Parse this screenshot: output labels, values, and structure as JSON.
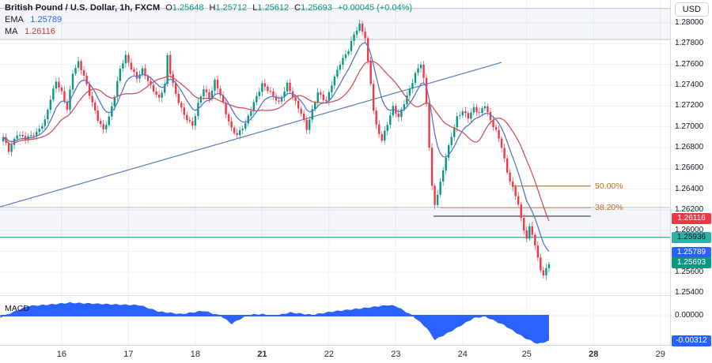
{
  "header": {
    "symbol_line": "British Pound / U.S. Dollar, 1h, FXCM",
    "ohlc": [
      {
        "label": "O",
        "value": "1.25648"
      },
      {
        "label": "H",
        "value": "1.25712"
      },
      {
        "label": "L",
        "value": "1.25612"
      },
      {
        "label": "C",
        "value": "1.25693"
      }
    ],
    "change": "+0.00045 (+0.04%)",
    "ema_label": "EMA",
    "ema_value": "1.25789",
    "ma_label": "MA",
    "ma_value": "1.26116"
  },
  "macd_label": "MACD",
  "axis": {
    "currency_button": "USD",
    "price_ticks": [
      {
        "text": "1.28000",
        "price": 1.28
      },
      {
        "text": "1.27800",
        "price": 1.278
      },
      {
        "text": "1.27600",
        "price": 1.276
      },
      {
        "text": "1.27400",
        "price": 1.274
      },
      {
        "text": "1.27200",
        "price": 1.272
      },
      {
        "text": "1.27000",
        "price": 1.27
      },
      {
        "text": "1.26800",
        "price": 1.268
      },
      {
        "text": "1.26600",
        "price": 1.266
      },
      {
        "text": "1.26400",
        "price": 1.264
      },
      {
        "text": "1.26200",
        "price": 1.262
      },
      {
        "text": "1.26000",
        "price": 1.26
      },
      {
        "text": "1.25600",
        "price": 1.256
      },
      {
        "text": "1.25400",
        "price": 1.254
      }
    ],
    "macd_tick": {
      "text": "0.00000",
      "value": 0
    },
    "time_labels": [
      {
        "text": "16",
        "bar": 21,
        "bold": false
      },
      {
        "text": "17",
        "bar": 45,
        "bold": false
      },
      {
        "text": "18",
        "bar": 69,
        "bold": false
      },
      {
        "text": "21",
        "bar": 93,
        "bold": true
      },
      {
        "text": "22",
        "bar": 117,
        "bold": false
      },
      {
        "text": "23",
        "bar": 141,
        "bold": false
      },
      {
        "text": "24",
        "bar": 165,
        "bold": false
      },
      {
        "text": "25",
        "bar": 188,
        "bold": false
      },
      {
        "text": "28",
        "bar": 212,
        "bold": true
      },
      {
        "text": "29",
        "bar": 236,
        "bold": false
      }
    ]
  },
  "badges": [
    {
      "name": "ma-value-badge",
      "text": "1.26116",
      "pane": "price",
      "price": 1.26116,
      "bg": "#f23645",
      "fg": "#ffffff"
    },
    {
      "name": "level-price-badge",
      "text": "1.25936",
      "pane": "price",
      "price": 1.25936,
      "bg": "#2bb3a8",
      "fg": "#101722"
    },
    {
      "name": "ema-value-badge",
      "text": "1.25789",
      "pane": "price",
      "price": 1.25789,
      "bg": "#2962ff",
      "fg": "#ffffff"
    },
    {
      "name": "last-price-badge",
      "text": "1.25693",
      "pane": "price",
      "price": 1.25693,
      "bg": "#089981",
      "fg": "#ffffff"
    },
    {
      "name": "macd-value-badge",
      "text": "-0.00312",
      "pane": "macd",
      "value": -0.00312,
      "bg": "#2962ff",
      "fg": "#ffffff"
    }
  ],
  "colors": {
    "up": "#089981",
    "down": "#f23645",
    "ema_line": "#5b77c4",
    "ma_line": "#d0535e",
    "macd_fill": "#2962ff",
    "trendline": "#5c7cb8",
    "fib50_line": "#bf7c30",
    "fib382_line": "#cfa379",
    "fib_label": "#bd6f1e",
    "level_line": "#3aa99e",
    "gray_line": "#70737e",
    "zone_fill": "rgba(108,130,170,0.08)",
    "zone_border": "rgba(120,135,160,0.45)",
    "grid": "#eef1f6",
    "ohlc_value": "#089981",
    "ema_value": "#2962ff",
    "ma_value": "#c83b42"
  },
  "chart_data": {
    "type": "candlestick",
    "title": "British Pound / U.S. Dollar, 1h, FXCM",
    "interval": "1h",
    "legend_position": "top-left",
    "grid": true,
    "price_axis_range": [
      1.253,
      1.2822
    ],
    "bars": 197,
    "price_path": [
      [
        0,
        1.269
      ],
      [
        2,
        1.2677
      ],
      [
        5,
        1.2693
      ],
      [
        8,
        1.2689
      ],
      [
        12,
        1.2694
      ],
      [
        15,
        1.2706
      ],
      [
        17,
        1.2727
      ],
      [
        19,
        1.2744
      ],
      [
        21,
        1.2733
      ],
      [
        23,
        1.2717
      ],
      [
        25,
        1.2752
      ],
      [
        27,
        1.2762
      ],
      [
        29,
        1.2749
      ],
      [
        31,
        1.2731
      ],
      [
        34,
        1.2707
      ],
      [
        36,
        1.2697
      ],
      [
        38,
        1.2709
      ],
      [
        40,
        1.273
      ],
      [
        42,
        1.2756
      ],
      [
        44,
        1.2768
      ],
      [
        46,
        1.2756
      ],
      [
        48,
        1.2747
      ],
      [
        50,
        1.2755
      ],
      [
        53,
        1.2739
      ],
      [
        56,
        1.2727
      ],
      [
        58,
        1.2741
      ],
      [
        59,
        1.2768
      ],
      [
        60,
        1.2752
      ],
      [
        62,
        1.2731
      ],
      [
        65,
        1.2711
      ],
      [
        68,
        1.2701
      ],
      [
        70,
        1.2722
      ],
      [
        72,
        1.2737
      ],
      [
        74,
        1.2727
      ],
      [
        76,
        1.2744
      ],
      [
        78,
        1.2731
      ],
      [
        80,
        1.2713
      ],
      [
        82,
        1.2698
      ],
      [
        84,
        1.2692
      ],
      [
        87,
        1.2703
      ],
      [
        90,
        1.2723
      ],
      [
        93,
        1.2741
      ],
      [
        96,
        1.2733
      ],
      [
        99,
        1.2723
      ],
      [
        102,
        1.2741
      ],
      [
        104,
        1.2729
      ],
      [
        107,
        1.2713
      ],
      [
        109,
        1.2698
      ],
      [
        111,
        1.2716
      ],
      [
        113,
        1.2733
      ],
      [
        116,
        1.2724
      ],
      [
        118,
        1.2741
      ],
      [
        121,
        1.2761
      ],
      [
        124,
        1.2774
      ],
      [
        126,
        1.2789
      ],
      [
        128,
        1.2798
      ],
      [
        130,
        1.2786
      ],
      [
        131,
        1.2762
      ],
      [
        132,
        1.2742
      ],
      [
        133,
        1.2716
      ],
      [
        134,
        1.2701
      ],
      [
        136,
        1.2687
      ],
      [
        138,
        1.2703
      ],
      [
        140,
        1.2719
      ],
      [
        142,
        1.2709
      ],
      [
        144,
        1.2723
      ],
      [
        146,
        1.2736
      ],
      [
        148,
        1.2751
      ],
      [
        150,
        1.2761
      ],
      [
        151,
        1.2746
      ],
      [
        152,
        1.2722
      ],
      [
        153,
        1.2681
      ],
      [
        154,
        1.2642
      ],
      [
        155,
        1.2625
      ],
      [
        157,
        1.2646
      ],
      [
        159,
        1.2671
      ],
      [
        161,
        1.2691
      ],
      [
        163,
        1.2709
      ],
      [
        165,
        1.2715
      ],
      [
        167,
        1.2709
      ],
      [
        169,
        1.2718
      ],
      [
        171,
        1.2713
      ],
      [
        173,
        1.2721
      ],
      [
        175,
        1.2706
      ],
      [
        177,
        1.2696
      ],
      [
        179,
        1.2681
      ],
      [
        181,
        1.2656
      ],
      [
        183,
        1.2641
      ],
      [
        185,
        1.2626
      ],
      [
        186,
        1.2611
      ],
      [
        187,
        1.2601
      ],
      [
        188,
        1.2593
      ],
      [
        189,
        1.2603
      ],
      [
        190,
        1.2597
      ],
      [
        191,
        1.2586
      ],
      [
        192,
        1.2573
      ],
      [
        193,
        1.2563
      ],
      [
        194,
        1.2557
      ],
      [
        195,
        1.2563
      ],
      [
        196,
        1.2569
      ]
    ],
    "overlays": {
      "ema_period": 9,
      "ma_period": 18
    },
    "macd_points": [
      [
        -1,
        -0.0002
      ],
      [
        9,
        0.0012
      ],
      [
        14,
        0.0013
      ],
      [
        24,
        0.0016
      ],
      [
        39,
        0.0014
      ],
      [
        49,
        0.0013
      ],
      [
        56,
        0.0005
      ],
      [
        64,
        0.0002
      ],
      [
        72,
        0.0006
      ],
      [
        78,
        0.0
      ],
      [
        82,
        -0.001
      ],
      [
        88,
        0.0001
      ],
      [
        93,
        0.0002
      ],
      [
        97,
        -0.0001
      ],
      [
        103,
        0.0004
      ],
      [
        111,
        0.0001
      ],
      [
        118,
        0.0005
      ],
      [
        131,
        0.001
      ],
      [
        138,
        0.0013
      ],
      [
        141,
        0.0012
      ],
      [
        147,
        0.0
      ],
      [
        152,
        -0.0015
      ],
      [
        155,
        -0.003
      ],
      [
        161,
        -0.0019
      ],
      [
        169,
        -0.0003
      ],
      [
        173,
        -0.0001
      ],
      [
        180,
        -0.0012
      ],
      [
        187,
        -0.0027
      ],
      [
        192,
        -0.0035
      ],
      [
        196,
        -0.00312
      ]
    ],
    "annotations": {
      "trendline": {
        "from": {
          "bar": -1,
          "price": 1.2623
        },
        "to": {
          "bar": 179,
          "price": 1.2762
        }
      },
      "fib_levels": [
        {
          "label": "50.00%",
          "price": 1.2643,
          "bar_start": 183,
          "bar_end": 211
        },
        {
          "label": "38.20%",
          "price": 1.2622,
          "bar_start": 157,
          "bar_end": 211
        }
      ],
      "zones": [
        {
          "price_top": 1.2814,
          "price_bottom": 1.2784
        },
        {
          "price_top": 1.26225,
          "price_bottom": 1.25936
        }
      ],
      "horizontal_line": {
        "price": 1.2614,
        "bar_start": 154.5,
        "bar_end": 211
      },
      "level_line": {
        "price": 1.25936,
        "full_width": true
      }
    }
  }
}
